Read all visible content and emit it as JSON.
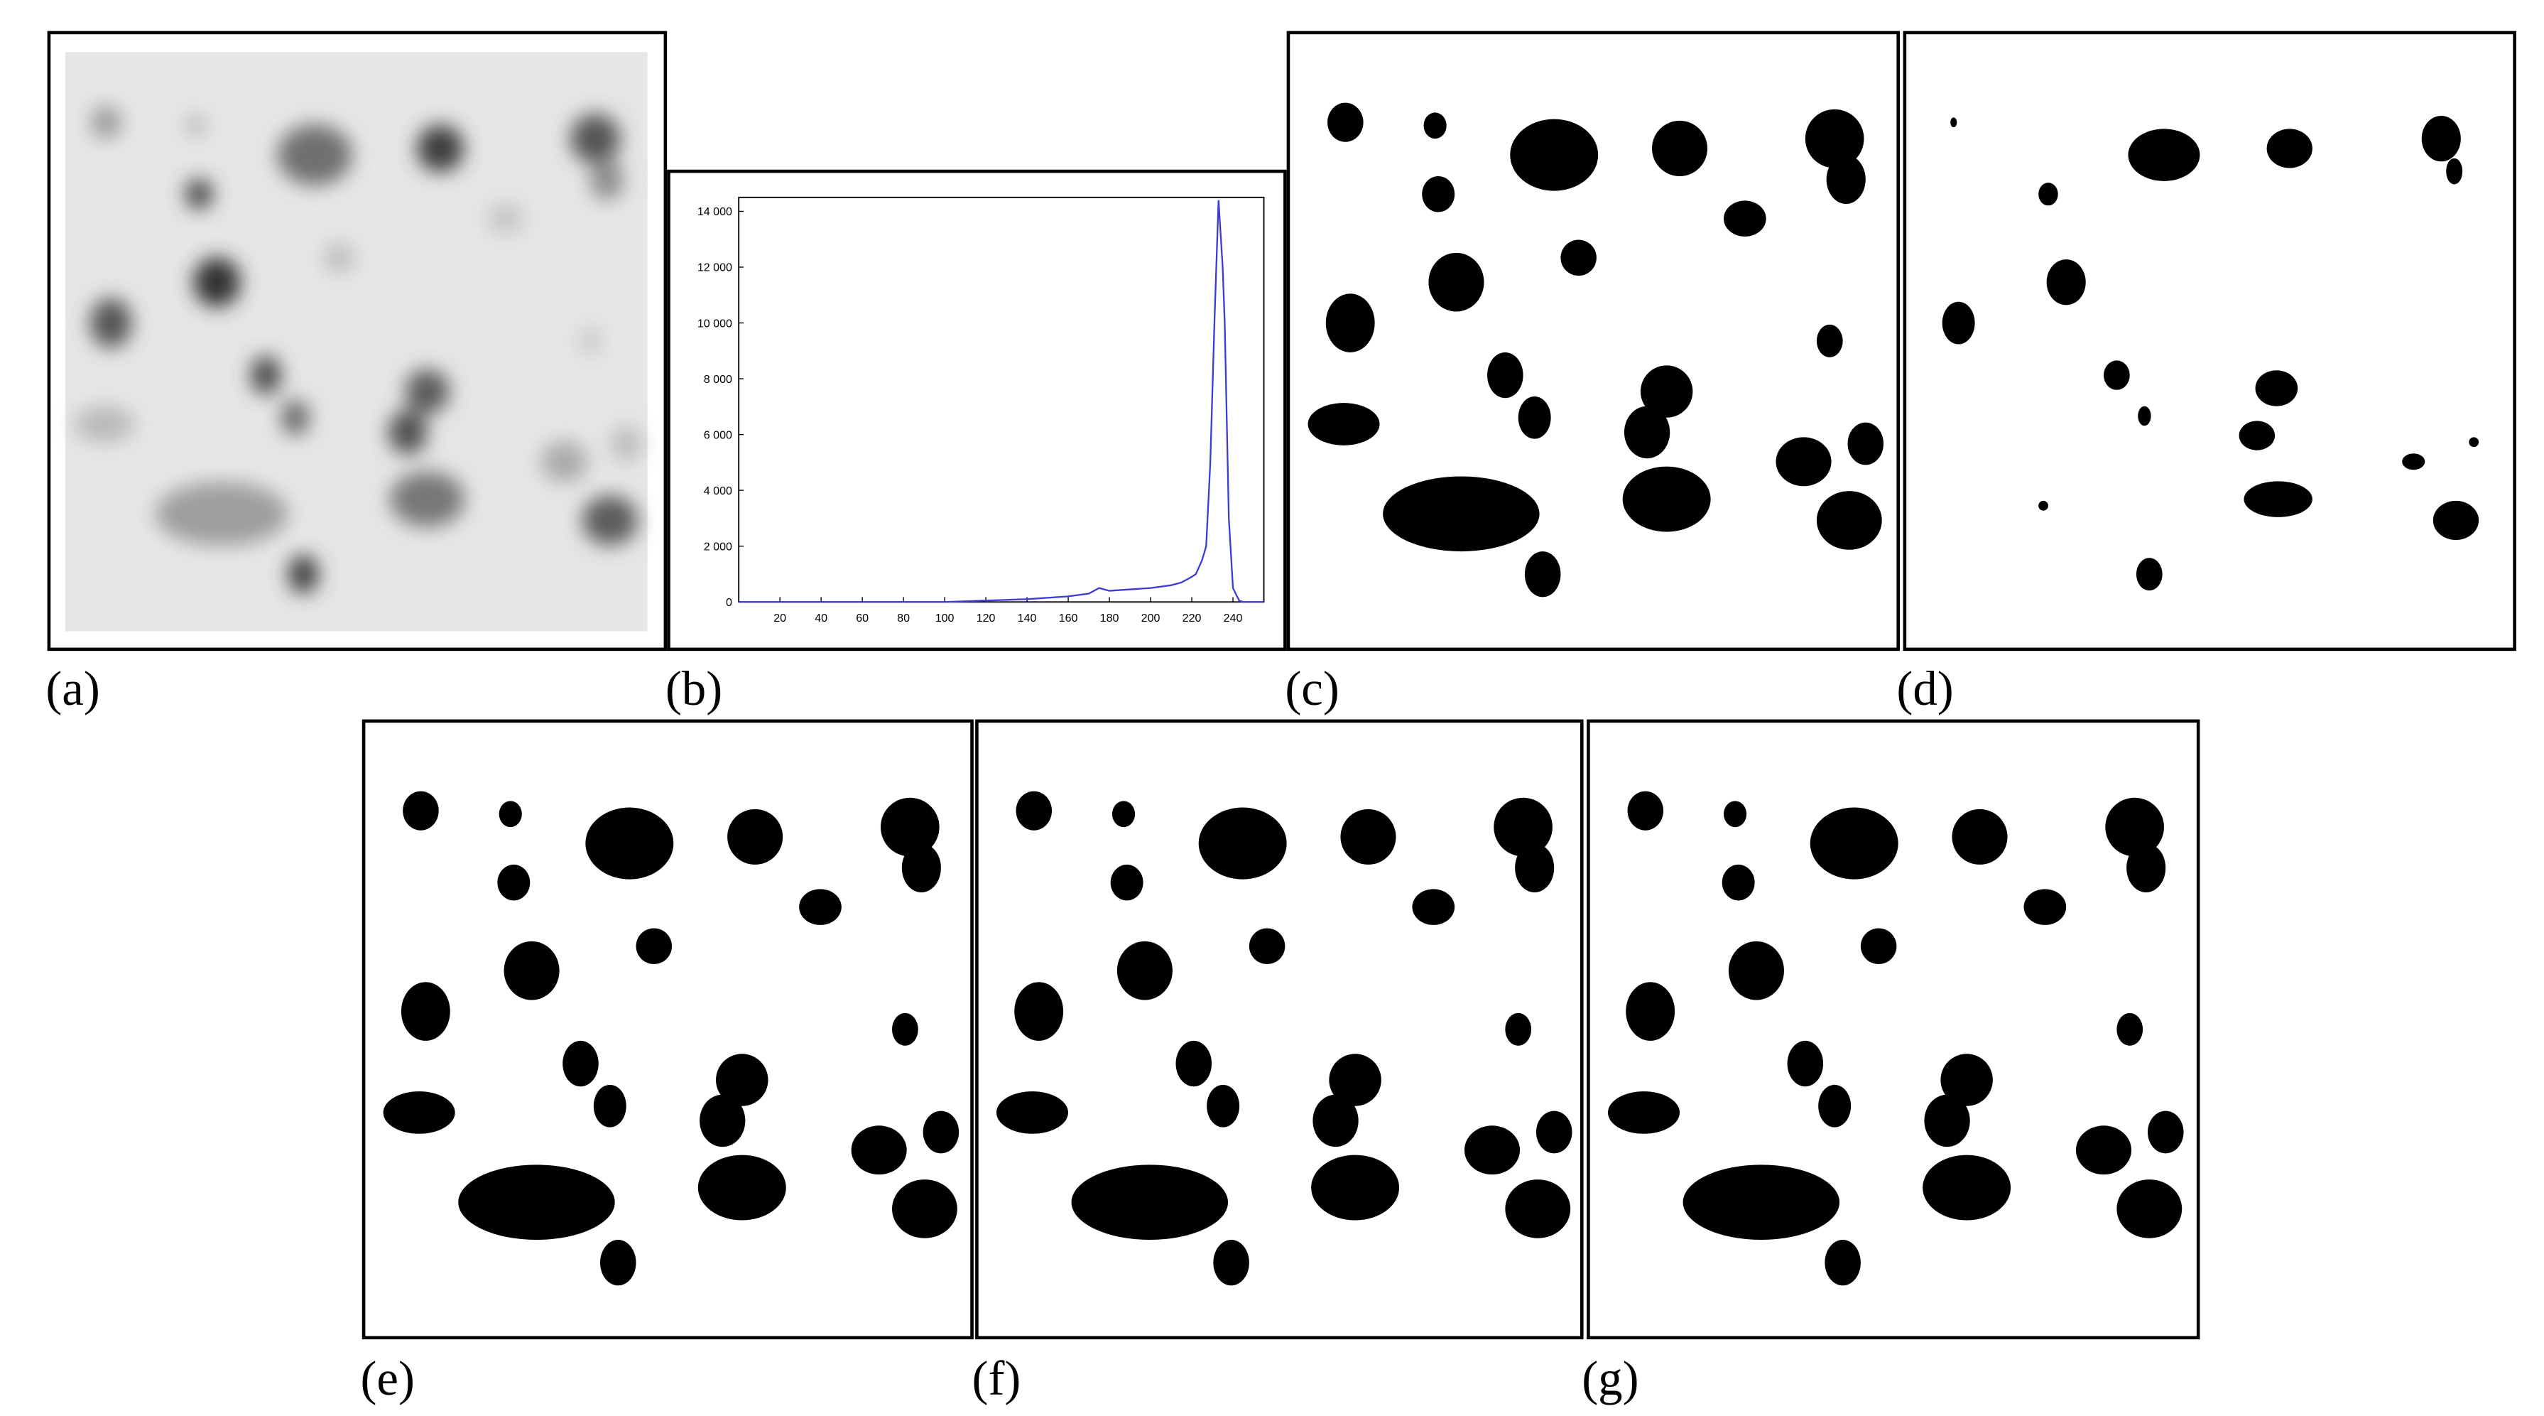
{
  "panel_labels": [
    "(a)",
    "(b)",
    "(c)",
    "(d)",
    "(e)",
    "(f)",
    "(g)"
  ],
  "chart_data": {
    "type": "line",
    "x": [
      0,
      100,
      120,
      140,
      160,
      170,
      175,
      180,
      190,
      200,
      210,
      215,
      220,
      222,
      225,
      227,
      229,
      231,
      233,
      235,
      236,
      238,
      240,
      243,
      245,
      255
    ],
    "values": [
      0,
      0,
      50,
      100,
      200,
      300,
      500,
      400,
      450,
      500,
      600,
      700,
      900,
      1000,
      1500,
      2000,
      5000,
      10000,
      14400,
      12000,
      10000,
      3000,
      500,
      50,
      0,
      0
    ],
    "color": "#3b3bd6",
    "xlim": [
      0,
      255
    ],
    "ylim": [
      0,
      14500
    ],
    "xticks": [
      20,
      40,
      60,
      80,
      100,
      120,
      140,
      160,
      180,
      200,
      220,
      240
    ],
    "yticks": [
      0,
      {
        "value": 2000,
        "label": "2 000"
      },
      {
        "value": 4000,
        "label": "4 000"
      },
      {
        "value": 6000,
        "label": "6 000"
      },
      {
        "value": 8000,
        "label": "8 000"
      },
      {
        "value": 10000,
        "label": "10 000"
      },
      {
        "value": 12000,
        "label": "12 000"
      },
      {
        "value": 14000,
        "label": "14 000"
      }
    ]
  }
}
